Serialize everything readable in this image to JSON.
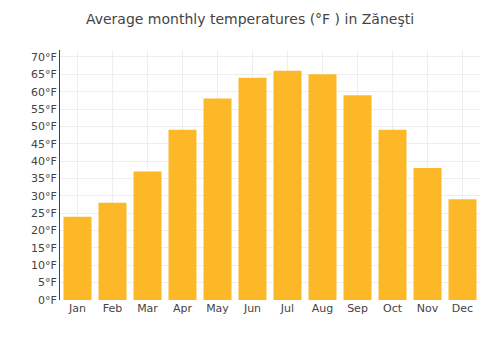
{
  "chart_data": {
    "type": "bar",
    "title": "Average monthly temperatures (°F ) in Zăneşti",
    "categories": [
      "Jan",
      "Feb",
      "Mar",
      "Apr",
      "May",
      "Jun",
      "Jul",
      "Aug",
      "Sep",
      "Oct",
      "Nov",
      "Dec"
    ],
    "values": [
      24,
      28,
      37,
      49,
      58,
      64,
      66,
      65,
      59,
      49,
      38,
      29
    ],
    "color": "#FDB827",
    "ylim": [
      0,
      72
    ],
    "yticks": [
      {
        "value": 0,
        "label": "0°F"
      },
      {
        "value": 5,
        "label": "5°F"
      },
      {
        "value": 10,
        "label": "10°F"
      },
      {
        "value": 15,
        "label": "15°F"
      },
      {
        "value": 20,
        "label": "20°F"
      },
      {
        "value": 25,
        "label": "25°F"
      },
      {
        "value": 30,
        "label": "30°F"
      },
      {
        "value": 35,
        "label": "35°F"
      },
      {
        "value": 40,
        "label": "40°F"
      },
      {
        "value": 45,
        "label": "45°F"
      },
      {
        "value": 50,
        "label": "50°F"
      },
      {
        "value": 55,
        "label": "55°F"
      },
      {
        "value": 60,
        "label": "60°F"
      },
      {
        "value": 65,
        "label": "65°F"
      },
      {
        "value": 70,
        "label": "70°F"
      }
    ],
    "grid": true
  }
}
